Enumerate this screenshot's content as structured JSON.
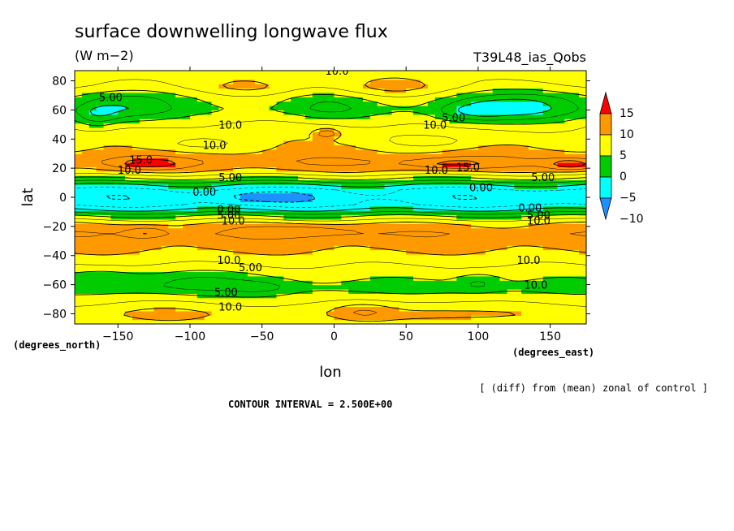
{
  "chart_data": {
    "type": "heatmap",
    "title": "surface downwelling longwave flux",
    "units": "(W m−2)",
    "experiment": "T39L48_ias_Qobs",
    "xlabel": "lon",
    "ylabel": "lat",
    "x_unit_label": "(degrees_east)",
    "y_unit_label": "(degrees_north)",
    "xlim": [
      -180,
      175
    ],
    "ylim": [
      -87,
      87
    ],
    "x_ticks": [
      -150,
      -100,
      -50,
      0,
      50,
      100,
      150
    ],
    "x_tick_labels": [
      "−150",
      "−100",
      "−50",
      "0",
      "50",
      "100",
      "150"
    ],
    "y_ticks": [
      80,
      60,
      40,
      20,
      0,
      -20,
      -40,
      -60,
      -80
    ],
    "y_tick_labels": [
      "80",
      "60",
      "40",
      "20",
      "0",
      "−20",
      "−40",
      "−60",
      "−80"
    ],
    "note": "[ (diff) from (mean) zonal of control ]",
    "contour_interval": "CONTOUR INTERVAL = 2.500E+00",
    "colorbar": {
      "levels": [
        -10,
        -5,
        0,
        5,
        10,
        15
      ],
      "labels": [
        "15",
        "10",
        "5",
        "0",
        "−5",
        "−10"
      ],
      "colors": [
        "#1e90ff",
        "#00ffff",
        "#00cc00",
        "#ffff00",
        "#ff9900",
        "#ff0000"
      ]
    },
    "zonal_profile": [
      {
        "lat": -87,
        "value": 8.0
      },
      {
        "lat": -80,
        "value": 9.0
      },
      {
        "lat": -72,
        "value": 7.0
      },
      {
        "lat": -62,
        "value": 4.0
      },
      {
        "lat": -55,
        "value": 5.5
      },
      {
        "lat": -45,
        "value": 8.0
      },
      {
        "lat": -35,
        "value": 10.5
      },
      {
        "lat": -25,
        "value": 12.0
      },
      {
        "lat": -18,
        "value": 10.0
      },
      {
        "lat": -13,
        "value": 5.0
      },
      {
        "lat": -9,
        "value": 0.5
      },
      {
        "lat": -5,
        "value": -3.0
      },
      {
        "lat": 0,
        "value": -4.0
      },
      {
        "lat": 5,
        "value": -3.0
      },
      {
        "lat": 9,
        "value": 0.5
      },
      {
        "lat": 13,
        "value": 5.0
      },
      {
        "lat": 18,
        "value": 10.0
      },
      {
        "lat": 24,
        "value": 12.5
      },
      {
        "lat": 32,
        "value": 10.5
      },
      {
        "lat": 42,
        "value": 9.0
      },
      {
        "lat": 50,
        "value": 8.0
      },
      {
        "lat": 60,
        "value": 5.0
      },
      {
        "lat": 68,
        "value": 5.5
      },
      {
        "lat": 76,
        "value": 8.0
      },
      {
        "lat": 87,
        "value": 8.5
      }
    ],
    "blobs": [
      {
        "lon": -145,
        "lat": 62,
        "dlon": 35,
        "dlat": 12,
        "amp": -5
      },
      {
        "lon": -165,
        "lat": 55,
        "dlon": 15,
        "dlat": 8,
        "amp": -4
      },
      {
        "lon": 130,
        "lat": 62,
        "dlon": 45,
        "dlat": 12,
        "amp": -6
      },
      {
        "lon": 95,
        "lat": 58,
        "dlon": 25,
        "dlat": 8,
        "amp": -4
      },
      {
        "lon": -5,
        "lat": 62,
        "dlon": 30,
        "dlat": 10,
        "amp": -3
      },
      {
        "lon": -60,
        "lat": 75,
        "dlon": 30,
        "dlat": 7,
        "amp": 2.5
      },
      {
        "lon": 40,
        "lat": 75,
        "dlon": 35,
        "dlat": 8,
        "amp": 3
      },
      {
        "lon": -5,
        "lat": 44,
        "dlon": 8,
        "dlat": 3,
        "amp": 6
      },
      {
        "lon": 70,
        "lat": 38,
        "dlon": 35,
        "dlat": 5,
        "amp": -3
      },
      {
        "lon": -100,
        "lat": 36,
        "dlon": 40,
        "dlat": 5,
        "amp": -2.5
      },
      {
        "lon": -130,
        "lat": 23,
        "dlon": 25,
        "dlat": 4,
        "amp": 4
      },
      {
        "lon": 80,
        "lat": 23,
        "dlon": 30,
        "dlat": 4,
        "amp": 4
      },
      {
        "lon": 160,
        "lat": 23,
        "dlon": 15,
        "dlat": 4,
        "amp": 3
      },
      {
        "lon": 170,
        "lat": 22,
        "dlon": 15,
        "dlat": 4,
        "amp": 3
      },
      {
        "lon": -130,
        "lat": -24,
        "dlon": 15,
        "dlat": 4,
        "amp": 4
      },
      {
        "lon": -20,
        "lat": -23,
        "dlon": 40,
        "dlat": 4,
        "amp": 3.5
      },
      {
        "lon": -95,
        "lat": -58,
        "dlon": 45,
        "dlat": 8,
        "amp": -3
      },
      {
        "lon": -160,
        "lat": -55,
        "dlon": 25,
        "dlat": 7,
        "amp": -2.5
      },
      {
        "lon": 100,
        "lat": -58,
        "dlon": 15,
        "dlat": 6,
        "amp": -3
      },
      {
        "lon": -50,
        "lat": -62,
        "dlon": 20,
        "dlat": 5,
        "amp": -2
      },
      {
        "lon": 70,
        "lat": -80,
        "dlon": 60,
        "dlat": 8,
        "amp": 2
      },
      {
        "lon": -120,
        "lat": -80,
        "dlon": 40,
        "dlat": 8,
        "amp": 2
      },
      {
        "lon": 20,
        "lat": -78,
        "dlon": 20,
        "dlat": 6,
        "amp": 3
      },
      {
        "lon": 150,
        "lat": 0,
        "dlon": 25,
        "dlat": 4,
        "amp": -2
      },
      {
        "lon": -60,
        "lat": 0,
        "dlon": 35,
        "dlat": 4,
        "amp": -2
      }
    ],
    "contour_labels": [
      {
        "text": "10.0",
        "lon": 2,
        "lat": 87
      },
      {
        "text": "5.00",
        "lon": -155,
        "lat": 69
      },
      {
        "text": "10.0",
        "lon": -72,
        "lat": 50
      },
      {
        "text": "5.00",
        "lon": 83,
        "lat": 55
      },
      {
        "text": "10.0",
        "lon": 70,
        "lat": 50
      },
      {
        "text": "10.0",
        "lon": -83,
        "lat": 36
      },
      {
        "text": "15.0",
        "lon": -134,
        "lat": 26
      },
      {
        "text": "10.0",
        "lon": -142,
        "lat": 19
      },
      {
        "text": "10.0",
        "lon": 71,
        "lat": 19
      },
      {
        "text": "15.0",
        "lon": 93,
        "lat": 21
      },
      {
        "text": "5.00",
        "lon": -72,
        "lat": 14
      },
      {
        "text": "5.00",
        "lon": 145,
        "lat": 14
      },
      {
        "text": "0.00",
        "lon": -90,
        "lat": 4
      },
      {
        "text": "0.00",
        "lon": 102,
        "lat": 7
      },
      {
        "text": "0.00",
        "lon": -73,
        "lat": -8
      },
      {
        "text": "0.00",
        "lon": 136,
        "lat": -7
      },
      {
        "text": "5.00",
        "lon": -73,
        "lat": -12
      },
      {
        "text": "10.0",
        "lon": -70,
        "lat": -16
      },
      {
        "text": "5.00",
        "lon": 142,
        "lat": -12
      },
      {
        "text": "10.0",
        "lon": 142,
        "lat": -16
      },
      {
        "text": "10.0",
        "lon": -73,
        "lat": -43
      },
      {
        "text": "5.00",
        "lon": -58,
        "lat": -48
      },
      {
        "text": "10.0",
        "lon": 135,
        "lat": -43
      },
      {
        "text": "10.0",
        "lon": 140,
        "lat": -60
      },
      {
        "text": "5.00",
        "lon": -75,
        "lat": -65
      },
      {
        "text": "10.0",
        "lon": -72,
        "lat": -75
      }
    ]
  }
}
